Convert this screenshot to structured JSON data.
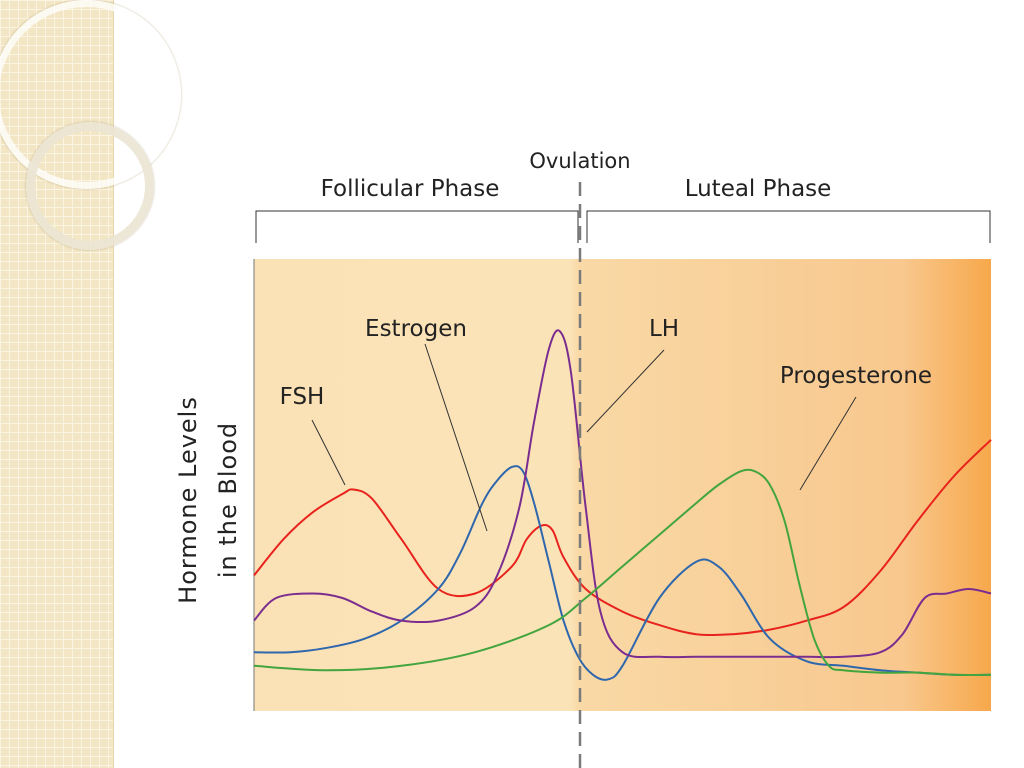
{
  "chart_data": {
    "type": "line",
    "title": "",
    "ylabel_line1": "Hormone Levels",
    "ylabel_line2": "in the Blood",
    "xlabel": "",
    "annotations": {
      "ovulation": "Ovulation",
      "follicular_phase": "Follicular Phase",
      "luteal_phase": "Luteal Phase"
    },
    "x_range": [
      0,
      100
    ],
    "y_range": [
      0,
      100
    ],
    "ovulation_x": 44.2,
    "background": {
      "left": "#fbe2b6",
      "mid": "#f9d9a6",
      "right": "#f7a84b"
    },
    "series": [
      {
        "name": "FSH",
        "color": "#e8231d",
        "x": [
          0,
          4,
          8,
          12,
          13.5,
          16,
          20,
          25,
          30,
          35,
          37,
          39,
          40.5,
          42,
          45,
          50,
          55,
          60,
          65,
          70,
          75,
          80,
          85,
          90,
          95,
          100
        ],
        "y": [
          30,
          38,
          44,
          48,
          49,
          47,
          38,
          27,
          26,
          32,
          38,
          41,
          40,
          34,
          27,
          22,
          19,
          17,
          17,
          18,
          20,
          23,
          31,
          42,
          52,
          60
        ]
      },
      {
        "name": "Estrogen",
        "color": "#2f67ad",
        "x": [
          0,
          5,
          10,
          15,
          20,
          25,
          28,
          31,
          33,
          35,
          36.5,
          38,
          40,
          42,
          44,
          46,
          48,
          50,
          55,
          60,
          63,
          66,
          70,
          75,
          80,
          85,
          90,
          95,
          100
        ],
        "y": [
          13,
          13,
          14,
          16,
          20,
          27,
          35,
          46,
          51,
          54,
          53,
          46,
          33,
          20,
          12,
          8,
          7,
          10,
          25,
          33,
          32,
          26,
          16,
          11,
          10,
          9,
          8.5,
          8,
          8
        ]
      },
      {
        "name": "LH",
        "color": "#7a2d8f",
        "x": [
          0,
          3,
          8,
          12,
          16,
          20,
          25,
          30,
          33,
          36,
          38,
          40,
          41.5,
          43,
          45,
          47,
          50,
          55,
          60,
          65,
          70,
          75,
          80,
          85,
          88,
          91,
          94,
          97,
          100
        ],
        "y": [
          20,
          25,
          26,
          25,
          22,
          20,
          20,
          23,
          30,
          45,
          64,
          80,
          84,
          75,
          45,
          22,
          13,
          12,
          12,
          12,
          12,
          12,
          12,
          13,
          17,
          25,
          26,
          27,
          26
        ]
      },
      {
        "name": "Progesterone",
        "color": "#42a53d",
        "x": [
          0,
          10,
          20,
          30,
          40,
          45,
          50,
          55,
          60,
          63,
          66,
          68,
          70,
          72,
          74,
          76,
          78,
          80,
          85,
          90,
          95,
          100
        ],
        "y": [
          10,
          9,
          10,
          13,
          19,
          25,
          32,
          39,
          46,
          50,
          53,
          53,
          50,
          42,
          28,
          16,
          10,
          9,
          8.5,
          8.5,
          8,
          8
        ]
      }
    ]
  }
}
